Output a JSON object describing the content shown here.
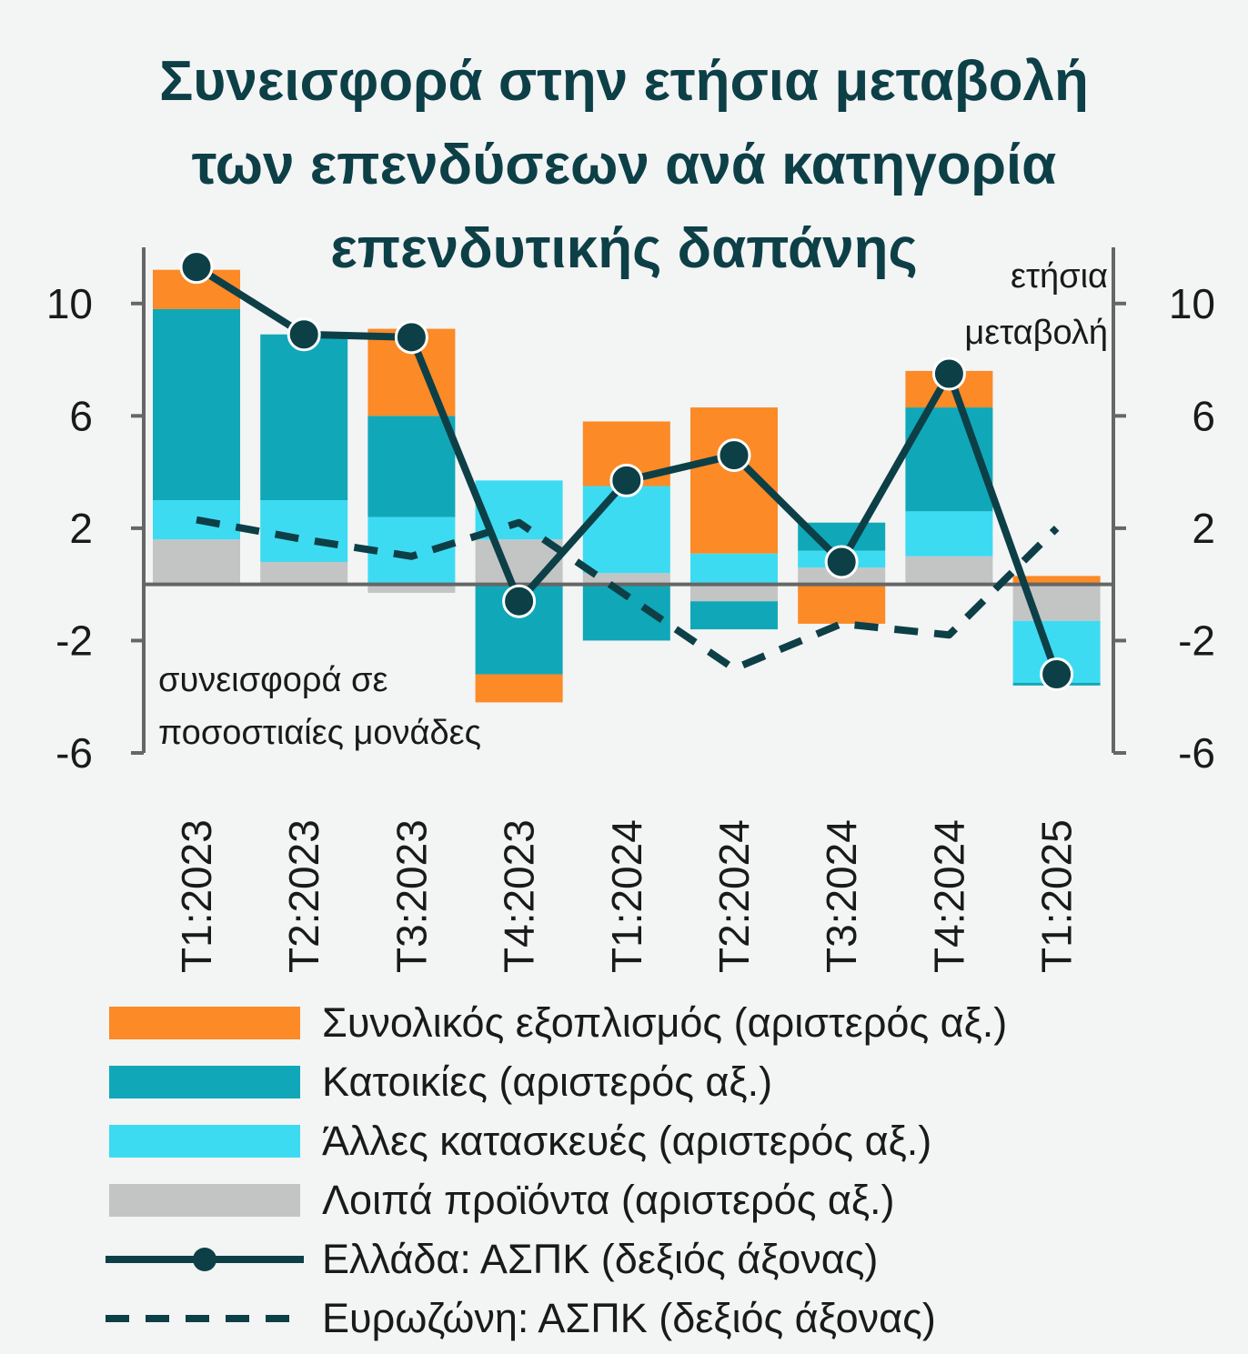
{
  "title_lines": [
    "Συνεισφορά στην ετήσια μεταβολή",
    "των επενδύσεων ανά κατηγορία",
    "επενδυτικής δαπάνης"
  ],
  "annotations": {
    "left_axis": [
      "συνεισφορά σε",
      "ποσοστιαίες μονάδες"
    ],
    "right_axis": [
      "ετήσια",
      "μεταβολή"
    ]
  },
  "colors": {
    "title": "#0d3f47",
    "equipment": "#fb8a27",
    "dwellings": "#10a8b8",
    "other_construction": "#3ddbf2",
    "other_products": "#c3c5c4",
    "lines": "#0d3f47",
    "axis": "#666666"
  },
  "chart_data": {
    "type": "bar",
    "stacked": true,
    "categories": [
      "T1:2023",
      "T2:2023",
      "T3:2023",
      "T4:2023",
      "T1:2024",
      "T2:2024",
      "T3:2024",
      "T4:2024",
      "T1:2025"
    ],
    "y_left": {
      "ylim": [
        -6,
        12
      ],
      "ticks": [
        "10",
        "6",
        "2",
        "-2",
        "-6"
      ]
    },
    "y_right": {
      "ylim": [
        -6,
        12
      ],
      "ticks": [
        "10",
        "6",
        "2",
        "-2",
        "-6"
      ]
    },
    "series": [
      {
        "name": "Λοιπά προϊόντα (αριστερός αξ.)",
        "type": "bar",
        "color": "#c3c5c4",
        "values": [
          1.6,
          0.8,
          -0.3,
          1.6,
          0.4,
          -0.6,
          0.6,
          1.0,
          -1.3
        ]
      },
      {
        "name": "Άλλες κατασκευές (αριστερός αξ.)",
        "type": "bar",
        "color": "#3ddbf2",
        "values": [
          1.4,
          2.2,
          2.4,
          2.1,
          3.1,
          1.1,
          0.6,
          1.6,
          -2.2
        ]
      },
      {
        "name": "Κατοικίες (αριστερός αξ.)",
        "type": "bar",
        "color": "#10a8b8",
        "values": [
          6.8,
          5.9,
          3.6,
          -3.2,
          -2.0,
          -1.0,
          1.0,
          3.7,
          -0.1
        ]
      },
      {
        "name": "Συνολικός εξοπλισμός (αριστερός αξ.)",
        "type": "bar",
        "color": "#fb8a27",
        "values": [
          1.4,
          0.0,
          3.1,
          -1.0,
          2.3,
          5.2,
          -1.4,
          1.3,
          0.3
        ]
      },
      {
        "name": "Ελλάδα: ΑΣΠΚ (δεξιός άξονας)",
        "type": "line",
        "marker": "circle",
        "axis": "right",
        "values": [
          11.3,
          8.9,
          8.8,
          -0.6,
          3.7,
          4.6,
          0.8,
          7.5,
          -3.2
        ]
      },
      {
        "name": "Ευρωζώνη: ΑΣΠΚ (δεξιός άξονας)",
        "type": "line",
        "dash": true,
        "axis": "right",
        "values": [
          2.3,
          1.6,
          1.0,
          2.2,
          -0.4,
          -3.0,
          -1.4,
          -1.8,
          2.0
        ]
      }
    ],
    "legend_position": "bottom"
  }
}
